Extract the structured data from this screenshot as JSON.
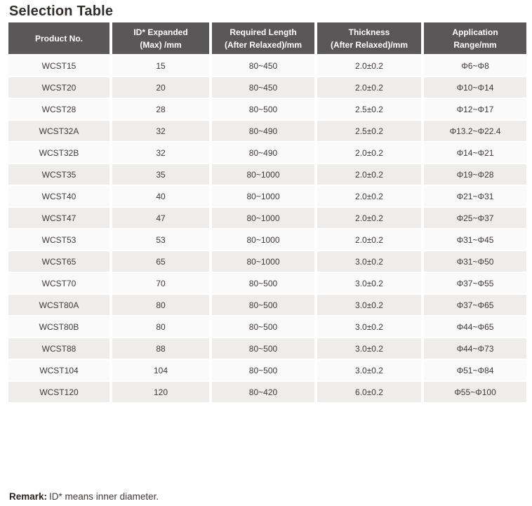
{
  "page": {
    "title": "Selection Table"
  },
  "table": {
    "columns": [
      {
        "lines": [
          "Product No."
        ]
      },
      {
        "lines": [
          "ID* Expanded",
          "(Max) /mm"
        ]
      },
      {
        "lines": [
          "Required Length",
          "(After Relaxed)/mm"
        ]
      },
      {
        "lines": [
          "Thickness",
          "(After Relaxed)/mm"
        ]
      },
      {
        "lines": [
          "Application",
          "Range/mm"
        ]
      }
    ],
    "rows": [
      [
        "WCST15",
        "15",
        "80~450",
        "2.0±0.2",
        "Φ6~Φ8"
      ],
      [
        "WCST20",
        "20",
        "80~450",
        "2.0±0.2",
        "Φ10~Φ14"
      ],
      [
        "WCST28",
        "28",
        "80~500",
        "2.5±0.2",
        "Φ12~Φ17"
      ],
      [
        "WCST32A",
        "32",
        "80~490",
        "2.5±0.2",
        "Φ13.2~Φ22.4"
      ],
      [
        "WCST32B",
        "32",
        "80~490",
        "2.0±0.2",
        "Φ14~Φ21"
      ],
      [
        "WCST35",
        "35",
        "80~1000",
        "2.0±0.2",
        "Φ19~Φ28"
      ],
      [
        "WCST40",
        "40",
        "80~1000",
        "2.0±0.2",
        "Φ21~Φ31"
      ],
      [
        "WCST47",
        "47",
        "80~1000",
        "2.0±0.2",
        "Φ25~Φ37"
      ],
      [
        "WCST53",
        "53",
        "80~1000",
        "2.0±0.2",
        "Φ31~Φ45"
      ],
      [
        "WCST65",
        "65",
        "80~1000",
        "3.0±0.2",
        "Φ31~Φ50"
      ],
      [
        "WCST70",
        "70",
        "80~500",
        "3.0±0.2",
        "Φ37~Φ55"
      ],
      [
        "WCST80A",
        "80",
        "80~500",
        "3.0±0.2",
        "Φ37~Φ65"
      ],
      [
        "WCST80B",
        "80",
        "80~500",
        "3.0±0.2",
        "Φ44~Φ65"
      ],
      [
        "WCST88",
        "88",
        "80~500",
        "3.0±0.2",
        "Φ44~Φ73"
      ],
      [
        "WCST104",
        "104",
        "80~500",
        "3.0±0.2",
        "Φ51~Φ84"
      ],
      [
        "WCST120",
        "120",
        "80~420",
        "6.0±0.2",
        "Φ55~Φ100"
      ]
    ]
  },
  "remark": {
    "label": "Remark:",
    "text": "ID* means inner diameter."
  },
  "colors": {
    "header_bg": "#595757",
    "header_text": "#ffffff",
    "row_light": "#fafafa",
    "row_dark": "#eeedec",
    "body_text": "#3e3a39",
    "title_text": "#332e2d"
  }
}
